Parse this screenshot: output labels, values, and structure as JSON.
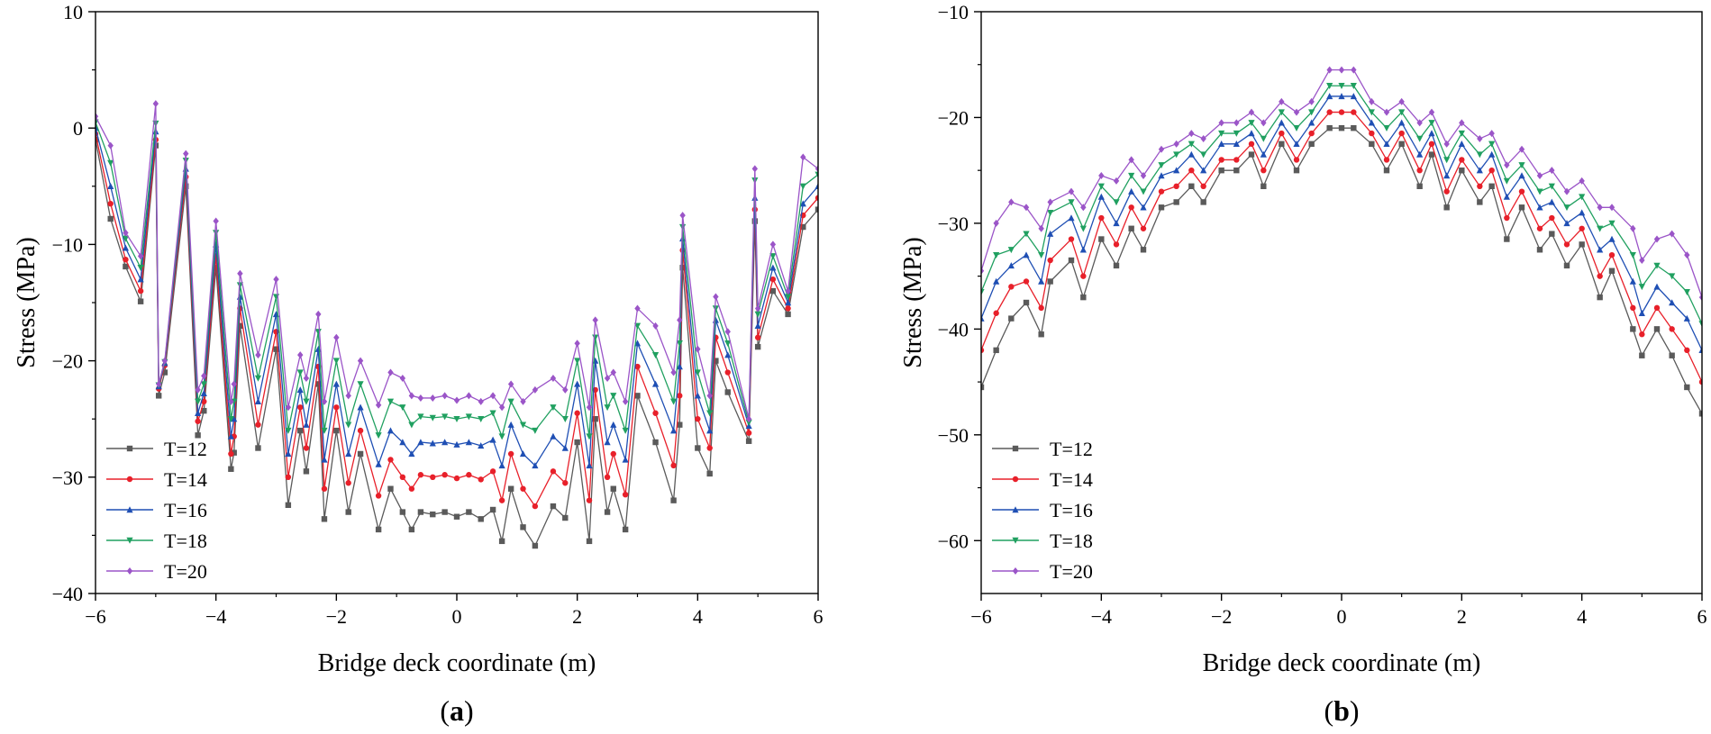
{
  "series_styles": [
    {
      "name": "T=12",
      "color": "#5a5a5a",
      "marker": "square"
    },
    {
      "name": "T=14",
      "color": "#e8202a",
      "marker": "circle"
    },
    {
      "name": "T=16",
      "color": "#1f4fb4",
      "marker": "triangle-up"
    },
    {
      "name": "T=18",
      "color": "#20a060",
      "marker": "triangle-down"
    },
    {
      "name": "T=20",
      "color": "#9b55c8",
      "marker": "diamond"
    }
  ],
  "chart_data": [
    {
      "type": "line",
      "panel": "a",
      "panel_label": "(a)",
      "panel_label_parts": [
        "(",
        "a",
        ")"
      ],
      "xlabel": "Bridge deck coordinate (m)",
      "ylabel": "Stress (MPa)",
      "xlim": [
        -6,
        6
      ],
      "ylim": [
        -40,
        10
      ],
      "xticks": [
        -6,
        -4,
        -2,
        0,
        2,
        4,
        6
      ],
      "yticks": [
        -40,
        -30,
        -20,
        -10,
        0,
        10
      ],
      "legend_position": "bottom-left",
      "x": [
        -6.0,
        -5.75,
        -5.5,
        -5.25,
        -5.0,
        -4.95,
        -4.85,
        -4.5,
        -4.3,
        -4.2,
        -4.0,
        -3.75,
        -3.7,
        -3.6,
        -3.3,
        -3.0,
        -2.8,
        -2.6,
        -2.5,
        -2.3,
        -2.2,
        -2.0,
        -1.8,
        -1.6,
        -1.3,
        -1.1,
        -0.9,
        -0.75,
        -0.6,
        -0.4,
        -0.2,
        0.0,
        0.2,
        0.4,
        0.6,
        0.75,
        0.9,
        1.1,
        1.3,
        1.6,
        1.8,
        2.0,
        2.2,
        2.3,
        2.5,
        2.6,
        2.8,
        3.0,
        3.3,
        3.6,
        3.7,
        3.75,
        4.0,
        4.2,
        4.3,
        4.5,
        4.85,
        4.95,
        5.0,
        5.25,
        5.5,
        5.75,
        6.0
      ],
      "series": [
        {
          "name": "T=12",
          "values": [
            -1.0,
            -7.8,
            -11.9,
            -14.9,
            -1.5,
            -23.0,
            -21.0,
            -5.0,
            -26.4,
            -24.3,
            -12.0,
            -29.3,
            -27.9,
            -17.0,
            -27.5,
            -19.0,
            -32.4,
            -26.0,
            -29.5,
            -22.0,
            -33.6,
            -26.0,
            -33.0,
            -28.0,
            -34.5,
            -31.0,
            -33.0,
            -34.5,
            -33.0,
            -33.2,
            -33.0,
            -33.4,
            -33.0,
            -33.6,
            -32.8,
            -35.5,
            -31.0,
            -34.3,
            -35.9,
            -32.5,
            -33.5,
            -27.0,
            -35.5,
            -25.0,
            -33.0,
            -31.0,
            -34.5,
            -23.0,
            -27.0,
            -32.0,
            -25.5,
            -12.0,
            -27.5,
            -29.7,
            -20.0,
            -22.7,
            -26.9,
            -8.0,
            -18.8,
            -14.0,
            -16.0,
            -8.5,
            -7.0
          ]
        },
        {
          "name": "T=14",
          "values": [
            -0.5,
            -6.5,
            -11.3,
            -14.0,
            -1.0,
            -22.4,
            -20.4,
            -4.2,
            -25.2,
            -23.5,
            -11.0,
            -28.0,
            -26.5,
            -15.5,
            -25.5,
            -17.5,
            -30.0,
            -24.0,
            -27.5,
            -20.5,
            -31.0,
            -24.0,
            -30.5,
            -26.0,
            -31.6,
            -28.5,
            -30.0,
            -31.0,
            -29.8,
            -30.0,
            -29.8,
            -30.1,
            -29.8,
            -30.2,
            -29.5,
            -32.0,
            -28.0,
            -31.0,
            -32.5,
            -29.5,
            -30.5,
            -24.5,
            -32.0,
            -22.5,
            -30.0,
            -28.0,
            -31.5,
            -20.5,
            -24.5,
            -29.0,
            -23.0,
            -10.5,
            -25.0,
            -27.5,
            -18.0,
            -21.0,
            -26.2,
            -7.0,
            -18.0,
            -13.0,
            -15.5,
            -7.5,
            -6.0
          ]
        },
        {
          "name": "T=16",
          "values": [
            0.0,
            -5.0,
            -10.3,
            -13.0,
            -0.3,
            -22.2,
            -20.2,
            -3.5,
            -24.5,
            -22.8,
            -10.0,
            -26.5,
            -25.0,
            -14.5,
            -23.5,
            -16.0,
            -28.0,
            -22.5,
            -25.5,
            -19.0,
            -28.5,
            -22.0,
            -28.0,
            -24.0,
            -28.9,
            -26.0,
            -27.0,
            -28.0,
            -27.0,
            -27.1,
            -27.0,
            -27.2,
            -27.0,
            -27.3,
            -26.8,
            -29.0,
            -25.5,
            -28.0,
            -29.0,
            -26.5,
            -27.5,
            -22.0,
            -29.0,
            -20.0,
            -27.0,
            -25.5,
            -28.5,
            -18.5,
            -22.0,
            -26.0,
            -20.5,
            -9.5,
            -23.0,
            -26.0,
            -16.5,
            -19.5,
            -25.6,
            -6.0,
            -17.0,
            -12.0,
            -15.0,
            -6.5,
            -5.0
          ]
        },
        {
          "name": "T=18",
          "values": [
            0.5,
            -3.0,
            -9.5,
            -12.0,
            0.4,
            -22.1,
            -20.1,
            -2.8,
            -23.5,
            -22.0,
            -9.0,
            -25.0,
            -23.5,
            -13.5,
            -21.5,
            -14.5,
            -26.0,
            -21.0,
            -23.5,
            -17.5,
            -26.0,
            -20.0,
            -25.5,
            -22.0,
            -26.4,
            -23.5,
            -24.0,
            -25.5,
            -24.8,
            -24.9,
            -24.8,
            -25.0,
            -24.8,
            -25.0,
            -24.5,
            -26.5,
            -23.5,
            -25.5,
            -26.0,
            -24.0,
            -25.0,
            -20.0,
            -26.5,
            -18.0,
            -24.0,
            -23.0,
            -26.0,
            -17.0,
            -19.5,
            -23.5,
            -18.5,
            -8.5,
            -21.0,
            -24.5,
            -15.5,
            -18.5,
            -25.3,
            -4.5,
            -16.0,
            -11.0,
            -14.5,
            -5.0,
            -4.0
          ]
        },
        {
          "name": "T=20",
          "values": [
            1.0,
            -1.5,
            -9.0,
            -11.0,
            2.1,
            -22.0,
            -20.0,
            -2.2,
            -22.5,
            -21.3,
            -8.0,
            -23.5,
            -22.0,
            -12.5,
            -19.5,
            -13.0,
            -24.0,
            -19.5,
            -21.5,
            -16.0,
            -23.5,
            -18.0,
            -23.0,
            -20.0,
            -23.8,
            -21.0,
            -21.5,
            -23.0,
            -23.2,
            -23.2,
            -23.0,
            -23.4,
            -23.0,
            -23.5,
            -23.0,
            -24.0,
            -22.0,
            -23.5,
            -22.5,
            -21.5,
            -22.5,
            -18.5,
            -24.0,
            -16.5,
            -21.5,
            -21.0,
            -23.5,
            -15.5,
            -17.0,
            -21.0,
            -16.5,
            -7.5,
            -19.0,
            -23.0,
            -14.5,
            -17.5,
            -25.0,
            -3.5,
            -15.5,
            -10.0,
            -14.0,
            -2.5,
            -3.5
          ]
        }
      ]
    },
    {
      "type": "line",
      "panel": "b",
      "panel_label": "(b)",
      "panel_label_parts": [
        "(",
        "b",
        ")"
      ],
      "xlabel": "Bridge deck coordinate (m)",
      "ylabel": "Stress (MPa)",
      "xlim": [
        -6,
        6
      ],
      "ylim": [
        -65,
        -10
      ],
      "xticks": [
        -6,
        -4,
        -2,
        0,
        2,
        4,
        6
      ],
      "yticks": [
        -60,
        -50,
        -40,
        -30,
        -20,
        -10
      ],
      "legend_position": "bottom-left",
      "x": [
        -6.0,
        -5.75,
        -5.5,
        -5.25,
        -5.0,
        -4.85,
        -4.5,
        -4.3,
        -4.0,
        -3.75,
        -3.5,
        -3.3,
        -3.0,
        -2.75,
        -2.5,
        -2.3,
        -2.0,
        -1.75,
        -1.5,
        -1.3,
        -1.0,
        -0.75,
        -0.5,
        -0.2,
        0.0,
        0.2,
        0.5,
        0.75,
        1.0,
        1.3,
        1.5,
        1.75,
        2.0,
        2.3,
        2.5,
        2.75,
        3.0,
        3.3,
        3.5,
        3.75,
        4.0,
        4.3,
        4.5,
        4.85,
        5.0,
        5.25,
        5.5,
        5.75,
        6.0
      ],
      "series": [
        {
          "name": "T=12",
          "values": [
            -45.5,
            -42.0,
            -39.0,
            -37.5,
            -40.5,
            -35.5,
            -33.5,
            -37.0,
            -31.5,
            -34.0,
            -30.5,
            -32.5,
            -28.5,
            -28.0,
            -26.5,
            -28.0,
            -25.0,
            -25.0,
            -23.5,
            -26.5,
            -22.5,
            -25.0,
            -22.5,
            -21.0,
            -21.0,
            -21.0,
            -22.5,
            -25.0,
            -22.5,
            -26.5,
            -23.5,
            -28.5,
            -25.0,
            -28.0,
            -26.5,
            -31.5,
            -28.5,
            -32.5,
            -31.0,
            -34.0,
            -32.0,
            -37.0,
            -34.5,
            -40.0,
            -42.5,
            -40.0,
            -42.5,
            -45.5,
            -48.0
          ]
        },
        {
          "name": "T=14",
          "values": [
            -42.0,
            -38.5,
            -36.0,
            -35.5,
            -38.0,
            -33.5,
            -31.5,
            -35.0,
            -29.5,
            -32.0,
            -28.5,
            -30.5,
            -27.0,
            -26.5,
            -25.0,
            -26.5,
            -24.0,
            -24.0,
            -22.5,
            -25.0,
            -21.5,
            -24.0,
            -21.5,
            -19.5,
            -19.5,
            -19.5,
            -21.5,
            -24.0,
            -21.5,
            -25.0,
            -22.5,
            -27.0,
            -24.0,
            -26.5,
            -25.0,
            -29.5,
            -27.0,
            -30.5,
            -29.5,
            -32.0,
            -30.5,
            -35.0,
            -33.0,
            -38.0,
            -40.5,
            -38.0,
            -40.0,
            -42.0,
            -45.0
          ]
        },
        {
          "name": "T=16",
          "values": [
            -39.0,
            -35.5,
            -34.0,
            -33.0,
            -35.5,
            -31.0,
            -29.5,
            -32.5,
            -27.5,
            -30.0,
            -27.0,
            -28.5,
            -25.5,
            -25.0,
            -23.5,
            -25.0,
            -22.5,
            -22.5,
            -21.5,
            -23.5,
            -20.5,
            -22.5,
            -20.5,
            -18.0,
            -18.0,
            -18.0,
            -20.5,
            -22.5,
            -20.5,
            -23.5,
            -21.5,
            -25.5,
            -22.5,
            -25.0,
            -23.5,
            -27.5,
            -25.5,
            -28.5,
            -28.0,
            -30.0,
            -29.0,
            -32.5,
            -31.5,
            -35.5,
            -38.5,
            -36.0,
            -37.5,
            -39.0,
            -42.0
          ]
        },
        {
          "name": "T=18",
          "values": [
            -36.5,
            -33.0,
            -32.5,
            -31.0,
            -33.0,
            -29.0,
            -28.0,
            -30.5,
            -26.5,
            -28.0,
            -25.5,
            -27.0,
            -24.5,
            -23.5,
            -22.5,
            -23.5,
            -21.5,
            -21.5,
            -20.5,
            -22.0,
            -19.5,
            -21.0,
            -19.5,
            -17.0,
            -17.0,
            -17.0,
            -19.5,
            -21.0,
            -19.5,
            -22.0,
            -20.5,
            -24.0,
            -21.5,
            -23.5,
            -22.5,
            -26.0,
            -24.5,
            -27.0,
            -26.5,
            -28.5,
            -27.5,
            -30.5,
            -30.0,
            -33.0,
            -36.0,
            -34.0,
            -35.0,
            -36.5,
            -39.5
          ]
        },
        {
          "name": "T=20",
          "values": [
            -34.5,
            -30.0,
            -28.0,
            -28.5,
            -30.5,
            -28.0,
            -27.0,
            -28.5,
            -25.5,
            -26.0,
            -24.0,
            -25.5,
            -23.0,
            -22.5,
            -21.5,
            -22.0,
            -20.5,
            -20.5,
            -19.5,
            -20.5,
            -18.5,
            -19.5,
            -18.5,
            -15.5,
            -15.5,
            -15.5,
            -18.5,
            -19.5,
            -18.5,
            -20.5,
            -19.5,
            -22.5,
            -20.5,
            -22.0,
            -21.5,
            -24.5,
            -23.0,
            -25.5,
            -25.0,
            -27.0,
            -26.0,
            -28.5,
            -28.5,
            -30.5,
            -33.5,
            -31.5,
            -31.0,
            -33.0,
            -37.0
          ]
        }
      ]
    }
  ]
}
